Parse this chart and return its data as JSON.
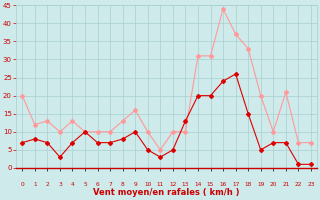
{
  "hours": [
    0,
    1,
    2,
    3,
    4,
    5,
    6,
    7,
    8,
    9,
    10,
    11,
    12,
    13,
    14,
    15,
    16,
    17,
    18,
    19,
    20,
    21,
    22,
    23
  ],
  "wind_avg": [
    7,
    8,
    7,
    3,
    7,
    10,
    7,
    7,
    8,
    10,
    5,
    3,
    5,
    13,
    20,
    20,
    24,
    26,
    15,
    5,
    7,
    7,
    1,
    1
  ],
  "wind_gust": [
    20,
    12,
    13,
    10,
    13,
    10,
    10,
    10,
    13,
    16,
    10,
    5,
    10,
    10,
    31,
    31,
    44,
    37,
    33,
    20,
    10,
    21,
    7,
    7
  ],
  "bg_color": "#ceeaea",
  "grid_color": "#a8cfcf",
  "line_avg_color": "#dd0000",
  "line_gust_color": "#ff9999",
  "xlabel": "Vent moyen/en rafales ( km/h )",
  "xlabel_color": "#cc0000",
  "tick_color": "#cc0000",
  "ylim": [
    0,
    45
  ],
  "yticks": [
    0,
    5,
    10,
    15,
    20,
    25,
    30,
    35,
    40,
    45
  ]
}
